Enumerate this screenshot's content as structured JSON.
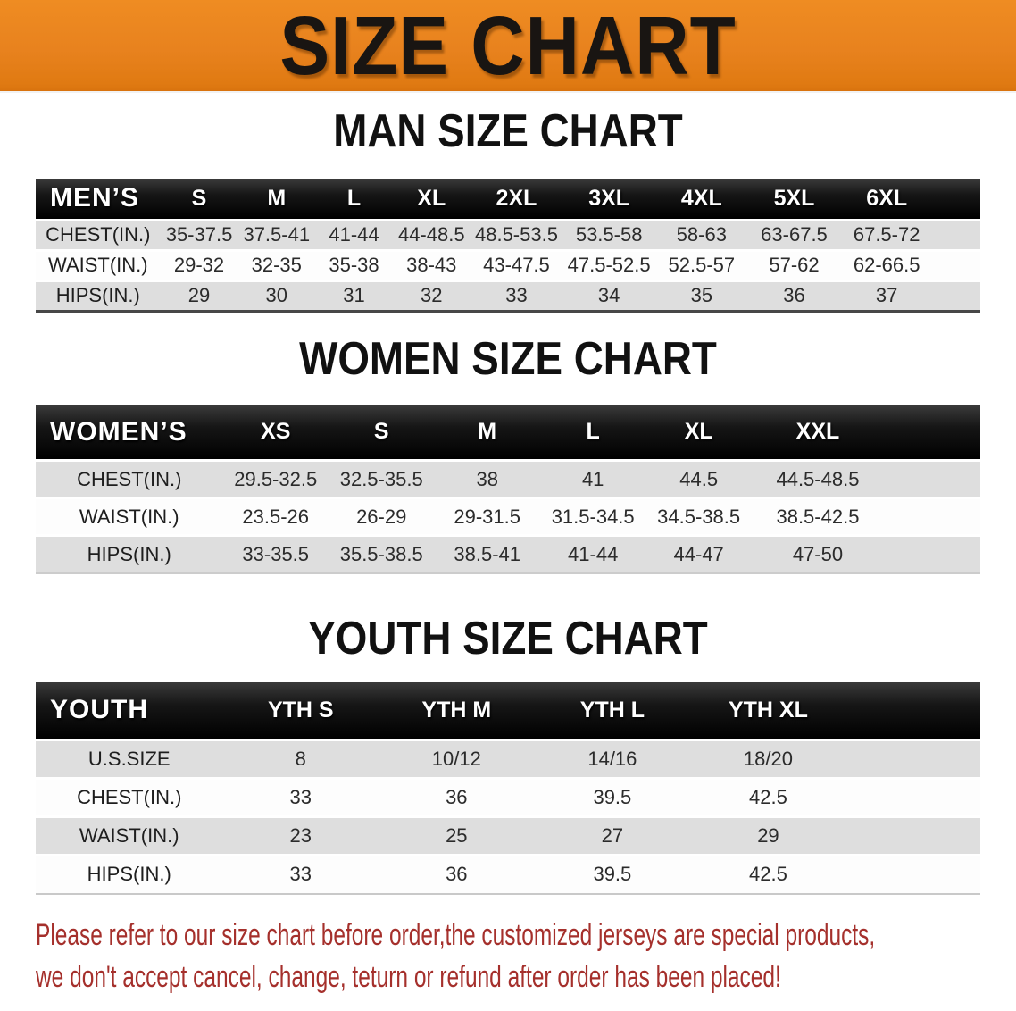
{
  "banner": {
    "title": "SIZE CHART",
    "bg_color": "#E8821E",
    "text_color": "#191512"
  },
  "colors": {
    "header_bar": "#0d0d0d",
    "row_gray": "#DEDEDE",
    "row_white": "#FDFDFD",
    "footer_red": "#A5302C"
  },
  "sections": [
    {
      "heading": "MAN SIZE CHART",
      "table": {
        "header_label": "MEN’S",
        "columns": [
          "S",
          "M",
          "L",
          "XL",
          "2XL",
          "3XL",
          "4XL",
          "5XL",
          "6XL"
        ],
        "rows": [
          {
            "label": "CHEST(IN.)",
            "values": [
              "35-37.5",
              "37.5-41",
              "41-44",
              "44-48.5",
              "48.5-53.5",
              "53.5-58",
              "58-63",
              "63-67.5",
              "67.5-72"
            ]
          },
          {
            "label": "WAIST(IN.)",
            "values": [
              "29-32",
              "32-35",
              "35-38",
              "38-43",
              "43-47.5",
              "47.5-52.5",
              "52.5-57",
              "57-62",
              "62-66.5"
            ]
          },
          {
            "label": "HIPS(IN.)",
            "values": [
              "29",
              "30",
              "31",
              "32",
              "33",
              "34",
              "35",
              "36",
              "37"
            ]
          }
        ]
      }
    },
    {
      "heading": "WOMEN SIZE CHART",
      "table": {
        "header_label": "WOMEN’S",
        "columns": [
          "XS",
          "S",
          "M",
          "L",
          "XL",
          "XXL"
        ],
        "rows": [
          {
            "label": "CHEST(IN.)",
            "values": [
              "29.5-32.5",
              "32.5-35.5",
              "38",
              "41",
              "44.5",
              "44.5-48.5"
            ]
          },
          {
            "label": "WAIST(IN.)",
            "values": [
              "23.5-26",
              "26-29",
              "29-31.5",
              "31.5-34.5",
              "34.5-38.5",
              "38.5-42.5"
            ]
          },
          {
            "label": "HIPS(IN.)",
            "values": [
              "33-35.5",
              "35.5-38.5",
              "38.5-41",
              "41-44",
              "44-47",
              "47-50"
            ]
          }
        ]
      }
    },
    {
      "heading": "YOUTH SIZE CHART",
      "table": {
        "header_label": "YOUTH",
        "columns": [
          "YTH S",
          "YTH M",
          "YTH L",
          "YTH XL"
        ],
        "rows": [
          {
            "label": "U.S.SIZE",
            "values": [
              "8",
              "10/12",
              "14/16",
              "18/20"
            ]
          },
          {
            "label": "CHEST(IN.)",
            "values": [
              "33",
              "36",
              "39.5",
              "42.5"
            ]
          },
          {
            "label": "WAIST(IN.)",
            "values": [
              "23",
              "25",
              "27",
              "29"
            ]
          },
          {
            "label": "HIPS(IN.)",
            "values": [
              "33",
              "36",
              "39.5",
              "42.5"
            ]
          }
        ]
      }
    }
  ],
  "footer": {
    "line1": "Please refer to our size chart before order,the customized jerseys are special products,",
    "line2": "we don't accept cancel, change, teturn or refund after order has been placed!"
  }
}
